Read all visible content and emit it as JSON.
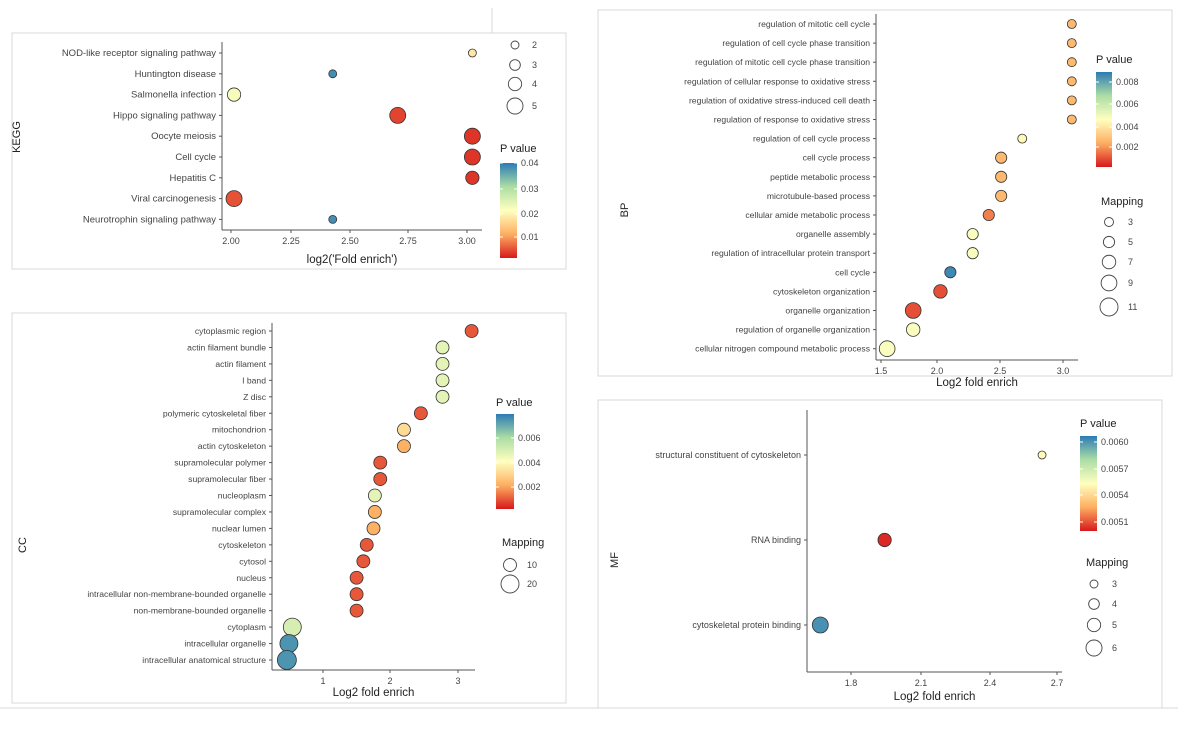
{
  "chart_data": [
    {
      "id": "kegg",
      "type": "scatter",
      "panel_label": "KEGG",
      "xlabel": "log2('Fold enrich')",
      "xlim": [
        1.97,
        3.05
      ],
      "xticks": [
        "2.00",
        "2.25",
        "2.50",
        "2.75",
        "3.00"
      ],
      "categories": [
        "NOD-like receptor signaling pathway",
        "Huntington disease",
        "Salmonella infection",
        "Hippo signaling pathway",
        "Oocyte meiosis",
        "Cell cycle",
        "Hepatitis C",
        "Viral carcinogenesis",
        "Neurotrophin signaling pathway"
      ],
      "x": [
        3.01,
        2.43,
        2.02,
        2.7,
        3.01,
        3.01,
        3.01,
        2.02,
        2.43
      ],
      "size": [
        2,
        2,
        4,
        5,
        5,
        5,
        4,
        5,
        2
      ],
      "pvalue": [
        0.018,
        0.04,
        0.022,
        0.003,
        0.002,
        0.002,
        0.002,
        0.004,
        0.04
      ],
      "color_legend": {
        "title": "P value",
        "ticks": [
          "0.04",
          "0.03",
          "0.02",
          "0.01"
        ],
        "range": [
          0.0,
          0.042
        ]
      },
      "size_legend": {
        "title": "",
        "labels": [
          "2",
          "3",
          "4",
          "5"
        ],
        "values": [
          2,
          3,
          4,
          5
        ]
      }
    },
    {
      "id": "bp",
      "type": "scatter",
      "panel_label": "BP",
      "xlabel": "Log2 fold enrich",
      "xlim": [
        1.47,
        3.1
      ],
      "xticks": [
        "1.5",
        "2.0",
        "2.5",
        "3.0"
      ],
      "categories": [
        "regulation of mitotic cell cycle",
        "regulation of cell cycle phase transition",
        "regulation of mitotic cell cycle phase transition",
        "regulation of cellular response to oxidative stress",
        "regulation of oxidative stress-induced cell death",
        "regulation of response to oxidative stress",
        "regulation of cell cycle process",
        "cell cycle process",
        "peptide metabolic process",
        "microtubule-based process",
        "cellular amide metabolic process",
        "organelle assembly",
        "regulation of intracellular protein transport",
        "cell cycle",
        "cytoskeleton organization",
        "organelle organization",
        "regulation of organelle organization",
        "cellular nitrogen compound metabolic process"
      ],
      "x": [
        3.05,
        3.05,
        3.05,
        3.05,
        3.05,
        3.05,
        2.65,
        2.48,
        2.48,
        2.48,
        2.38,
        2.25,
        2.25,
        2.07,
        1.99,
        1.77,
        1.77,
        1.56
      ],
      "size": [
        3,
        3,
        3,
        3,
        3,
        3,
        3,
        5,
        5,
        5,
        5,
        5,
        5,
        5,
        7,
        9,
        7,
        9
      ],
      "pvalue": [
        0.0025,
        0.0025,
        0.0025,
        0.0025,
        0.0025,
        0.0025,
        0.0042,
        0.0025,
        0.0025,
        0.0025,
        0.0015,
        0.0045,
        0.0045,
        0.0085,
        0.0008,
        0.0008,
        0.0045,
        0.0045
      ],
      "color_legend": {
        "title": "P value",
        "ticks": [
          "0.008",
          "0.006",
          "0.004",
          "0.002"
        ],
        "range": [
          0.0,
          0.0088
        ]
      },
      "size_legend": {
        "title": "Mapping",
        "labels": [
          "3",
          "5",
          "7",
          "9",
          "11"
        ],
        "values": [
          3,
          5,
          7,
          9,
          11
        ]
      }
    },
    {
      "id": "cc",
      "type": "scatter",
      "panel_label": "CC",
      "xlabel": "Log2 fold enrich",
      "xlim": [
        0.2,
        3.2
      ],
      "xticks": [
        "1",
        "2",
        "3"
      ],
      "categories": [
        "cytoplasmic region",
        "actin filament bundle",
        "actin filament",
        "I band",
        "Z disc",
        "polymeric cytoskeletal fiber",
        "mitochondrion",
        "actin cytoskeleton",
        "supramolecular polymer",
        "supramolecular fiber",
        "nucleoplasm",
        "supramolecular complex",
        "nuclear lumen",
        "cytoskeleton",
        "cytosol",
        "nucleus",
        "intracellular non-membrane-bounded organelle",
        "non-membrane-bounded organelle",
        "cytoplasm",
        "intracellular organelle",
        "intracellular anatomical structure"
      ],
      "x": [
        3.15,
        2.72,
        2.72,
        2.72,
        2.72,
        2.4,
        2.15,
        2.15,
        1.8,
        1.8,
        1.72,
        1.72,
        1.7,
        1.6,
        1.55,
        1.45,
        1.45,
        1.45,
        0.5,
        0.45,
        0.42
      ],
      "size": [
        3,
        3,
        3,
        3,
        3,
        5,
        5,
        5,
        7,
        7,
        7,
        7,
        7,
        8,
        9,
        9,
        9,
        9,
        20,
        20,
        22
      ],
      "pvalue": [
        0.0008,
        0.0045,
        0.0045,
        0.0045,
        0.0045,
        0.0008,
        0.003,
        0.002,
        0.0008,
        0.0008,
        0.0045,
        0.002,
        0.002,
        0.0008,
        0.0008,
        0.0008,
        0.0008,
        0.0008,
        0.0048,
        0.0072,
        0.0072
      ],
      "color_legend": {
        "title": "P value",
        "ticks": [
          "0.006",
          "0.004",
          "0.002"
        ],
        "range": [
          0.0,
          0.0077
        ]
      },
      "size_legend": {
        "title": "Mapping",
        "labels": [
          "10",
          "20"
        ],
        "values": [
          10,
          20
        ]
      }
    },
    {
      "id": "mf",
      "type": "scatter",
      "panel_label": "MF",
      "xlabel": "Log2 fold enrich",
      "xlim": [
        1.6,
        2.75
      ],
      "xticks": [
        "1.8",
        "2.1",
        "2.4",
        "2.7"
      ],
      "categories": [
        "structural constituent of cytoskeleton",
        "RNA binding",
        "cytoskeletal protein binding"
      ],
      "x": [
        2.66,
        1.95,
        1.66
      ],
      "size": [
        3,
        5,
        6
      ],
      "pvalue": [
        0.0055,
        0.005,
        0.006
      ],
      "color_legend": {
        "title": "P value",
        "ticks": [
          "0.0060",
          "0.0057",
          "0.0054",
          "0.0051"
        ],
        "range": [
          0.00497,
          0.00606
        ]
      },
      "size_legend": {
        "title": "Mapping",
        "labels": [
          "3",
          "4",
          "5",
          "6"
        ],
        "values": [
          3,
          4,
          5,
          6
        ]
      }
    }
  ]
}
